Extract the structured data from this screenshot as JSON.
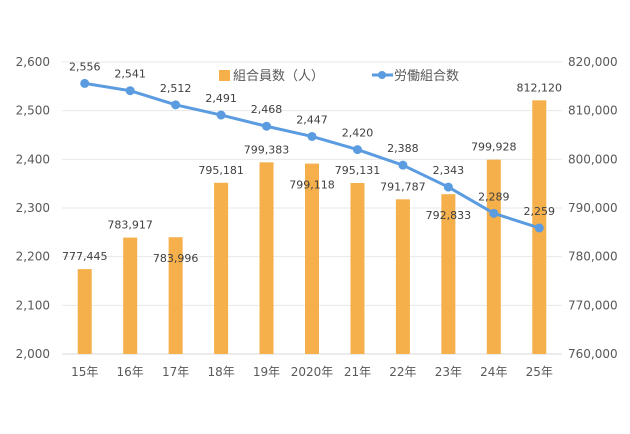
{
  "chart_data": {
    "type": "bar+line",
    "categories": [
      "15年",
      "16年",
      "17年",
      "18年",
      "19年",
      "2020年",
      "21年",
      "22年",
      "23年",
      "24年",
      "25年"
    ],
    "series": [
      {
        "name": "組合員数（人）",
        "type": "bar",
        "axis": "right",
        "color": "#F5AF4B",
        "values": [
          777445,
          783917,
          783996,
          795181,
          799383,
          799118,
          795131,
          791787,
          792833,
          799928,
          812120
        ],
        "labels": [
          "777,445",
          "783,917",
          "783,996",
          "795,181",
          "799,383",
          "799,118",
          "795,131",
          "791,787",
          "792,833",
          "799,928",
          "812,120"
        ]
      },
      {
        "name": "労働組合数",
        "type": "line",
        "axis": "left",
        "color": "#5B9BE0",
        "values": [
          2556,
          2541,
          2512,
          2491,
          2468,
          2447,
          2420,
          2388,
          2343,
          2289,
          2259
        ],
        "labels": [
          "2,556",
          "2,541",
          "2,512",
          "2,491",
          "2,468",
          "2,447",
          "2,420",
          "2,388",
          "2,343",
          "2,289",
          "2,259"
        ]
      }
    ],
    "left_axis": {
      "ylim": [
        2000,
        2600
      ],
      "ticks": [
        "2,000",
        "2,100",
        "2,200",
        "2,300",
        "2,400",
        "2,500",
        "2,600"
      ]
    },
    "right_axis": {
      "ylim": [
        760000,
        820000
      ],
      "ticks": [
        "760,000",
        "770,000",
        "780,000",
        "790,000",
        "800,000",
        "810,000",
        "820,000"
      ]
    },
    "grid": true,
    "legend_position": "top-center"
  }
}
